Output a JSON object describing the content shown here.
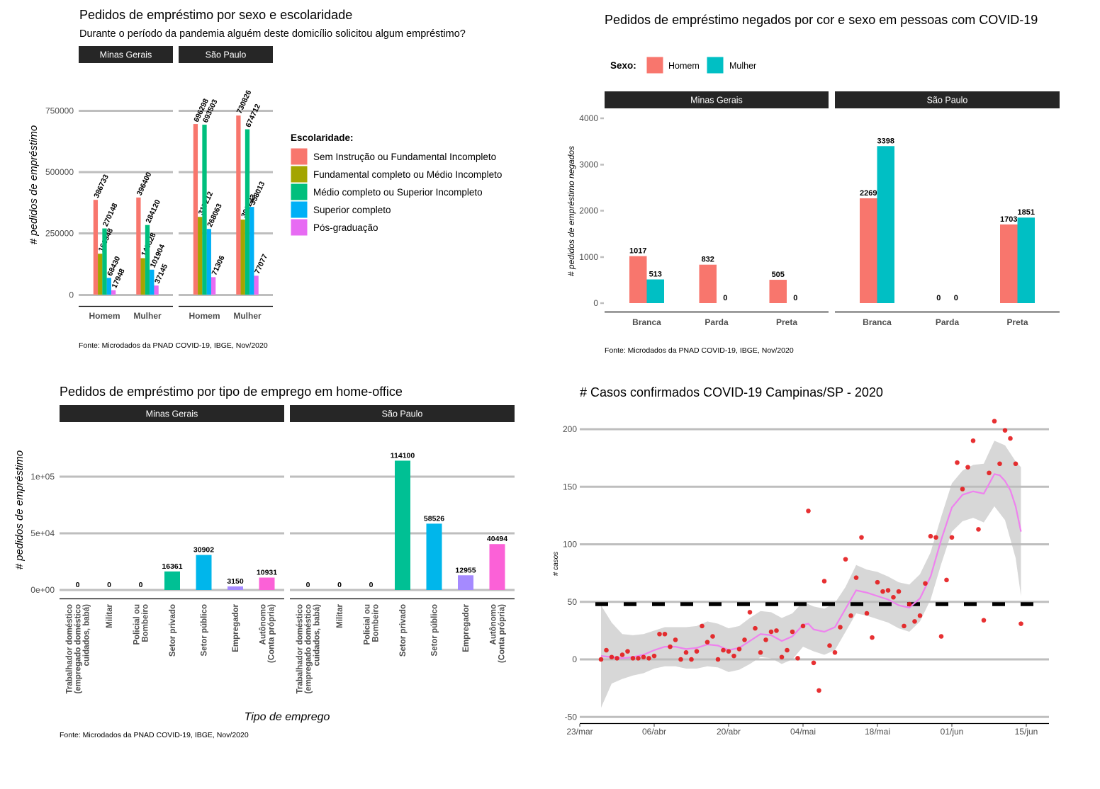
{
  "chart_data": [
    {
      "type": "bar",
      "title": "Pedidos de empréstimo por sexo e escolaridade",
      "subtitle": "Durante o período da pandemia alguém deste domicílio solicitou algum empréstimo?",
      "facets": [
        "Minas Gerais",
        "São Paulo"
      ],
      "categories": [
        "Homem",
        "Mulher"
      ],
      "ylabel": "# pedidos de empréstimo",
      "xlabel": "",
      "ylim": [
        0,
        800000
      ],
      "yticks": [
        0,
        250000,
        500000,
        750000
      ],
      "ytick_labels": [
        "0",
        "250000",
        "500000",
        "750000"
      ],
      "legend_title": "Escolaridade:",
      "legend_position": "right",
      "series": [
        {
          "name": "Sem Instrução ou Fundamental Incompleto",
          "color": "#F8766D",
          "values": {
            "Minas Gerais": [
              386733,
              396400
            ],
            "São Paulo": [
              696298,
              730826
            ]
          }
        },
        {
          "name": "Fundamental completo ou Médio Incompleto",
          "color": "#A3A500",
          "values": {
            "Minas Gerais": [
              166948,
              148828
            ],
            "São Paulo": [
              317212,
              306233
            ]
          }
        },
        {
          "name": "Médio completo ou Superior Incompleto",
          "color": "#00BF7D",
          "values": {
            "Minas Gerais": [
              270148,
              284120
            ],
            "São Paulo": [
              693503,
              674712
            ]
          }
        },
        {
          "name": "Superior completo",
          "color": "#00B0F6",
          "values": {
            "Minas Gerais": [
              68430,
              101904
            ],
            "São Paulo": [
              268063,
              358013
            ]
          }
        },
        {
          "name": "Pós-graduação",
          "color": "#E76BF3",
          "values": {
            "Minas Gerais": [
              17948,
              37145
            ],
            "São Paulo": [
              71306,
              77077
            ]
          }
        }
      ],
      "caption": "Fonte: Microdados da PNAD COVID-19, IBGE, Nov/2020"
    },
    {
      "type": "bar",
      "title": "Pedidos de empréstimo negados por cor e sexo em pessoas com COVID-19",
      "facets": [
        "Minas Gerais",
        "São Paulo"
      ],
      "categories": [
        "Branca",
        "Parda",
        "Preta"
      ],
      "ylabel": "# pedidos de empréstimo negados",
      "xlabel": "",
      "ylim": [
        0,
        4000
      ],
      "yticks": [
        0,
        1000,
        2000,
        3000,
        4000
      ],
      "ytick_labels": [
        "0",
        "1000",
        "2000",
        "3000",
        "4000"
      ],
      "legend_title": "Sexo:",
      "legend_position": "top",
      "series": [
        {
          "name": "Homem",
          "color": "#F8766D",
          "values": {
            "Minas Gerais": [
              1017,
              832,
              505
            ],
            "São Paulo": [
              2269,
              0,
              1703
            ]
          }
        },
        {
          "name": "Mulher",
          "color": "#00BFC4",
          "values": {
            "Minas Gerais": [
              513,
              0,
              0
            ],
            "São Paulo": [
              3398,
              0,
              1851
            ]
          }
        }
      ],
      "caption": "Fonte: Microdados da PNAD COVID-19, IBGE, Nov/2020"
    },
    {
      "type": "bar",
      "title": "Pedidos de empréstimo por tipo de emprego em home-office",
      "facets": [
        "Minas Gerais",
        "São Paulo"
      ],
      "categories": [
        [
          "Trabalhador doméstico",
          "(empregado doméstico",
          "cuidados, babá)"
        ],
        [
          "Militar"
        ],
        [
          "Policial ou",
          "Bombeiro"
        ],
        [
          "Setor privado"
        ],
        [
          "Setor público"
        ],
        [
          "Empregador"
        ],
        [
          "Autônomo",
          "(Conta própria)"
        ]
      ],
      "colors": [
        "#F8766D",
        "#C49A00",
        "#53B400",
        "#00C094",
        "#00B6EB",
        "#A58AFF",
        "#FB61D7"
      ],
      "values": {
        "Minas Gerais": [
          0,
          0,
          0,
          16361,
          30902,
          3150,
          10931
        ],
        "São Paulo": [
          0,
          0,
          0,
          114100,
          58526,
          12955,
          40494
        ]
      },
      "ylabel": "# pedidos de empréstimo",
      "xlabel": "Tipo de emprego",
      "ylim": [
        0,
        127000
      ],
      "yticks": [
        0,
        50000,
        100000
      ],
      "ytick_labels": [
        "0e+00",
        "5e+04",
        "1e+05"
      ],
      "caption": "Fonte: Microdados da PNAD COVID-19, IBGE, Nov/2020"
    },
    {
      "type": "scatter",
      "title": "# Casos confirmados COVID-19 Campinas/SP - 2020",
      "ylabel": "# casos",
      "xlabel": "",
      "x_start_date": "2020-03-23",
      "xticks": [
        0,
        14,
        28,
        42,
        56,
        70,
        84
      ],
      "xtick_labels": [
        "23/mar",
        "06/abr",
        "20/abr",
        "04/mai",
        "18/mai",
        "01/jun",
        "15/jun"
      ],
      "ylim": [
        -55,
        212
      ],
      "yticks": [
        -50,
        0,
        50,
        100,
        150,
        200
      ],
      "ytick_labels": [
        "-50",
        "0",
        "50",
        "100",
        "150",
        "200"
      ],
      "threshold_line": 48,
      "points": [
        [
          4,
          0
        ],
        [
          5,
          8
        ],
        [
          6,
          2
        ],
        [
          7,
          1
        ],
        [
          8,
          4
        ],
        [
          9,
          7
        ],
        [
          10,
          1
        ],
        [
          11,
          1
        ],
        [
          12,
          2
        ],
        [
          13,
          1
        ],
        [
          14,
          3
        ],
        [
          15,
          22
        ],
        [
          16,
          22
        ],
        [
          17,
          11
        ],
        [
          18,
          17
        ],
        [
          19,
          0
        ],
        [
          20,
          6
        ],
        [
          21,
          0
        ],
        [
          22,
          7
        ],
        [
          23,
          29
        ],
        [
          24,
          15
        ],
        [
          25,
          20
        ],
        [
          26,
          0
        ],
        [
          27,
          8
        ],
        [
          28,
          7
        ],
        [
          29,
          3
        ],
        [
          30,
          9
        ],
        [
          31,
          17
        ],
        [
          32,
          41
        ],
        [
          33,
          27
        ],
        [
          34,
          6
        ],
        [
          35,
          17
        ],
        [
          36,
          24
        ],
        [
          37,
          25
        ],
        [
          38,
          2
        ],
        [
          39,
          8
        ],
        [
          40,
          24
        ],
        [
          41,
          1
        ],
        [
          42,
          29
        ],
        [
          43,
          129
        ],
        [
          44,
          -3
        ],
        [
          45,
          -27
        ],
        [
          46,
          68
        ],
        [
          47,
          12
        ],
        [
          48,
          6
        ],
        [
          49,
          28
        ],
        [
          50,
          87
        ],
        [
          51,
          38
        ],
        [
          52,
          71
        ],
        [
          53,
          106
        ],
        [
          54,
          40
        ],
        [
          55,
          19
        ],
        [
          56,
          67
        ],
        [
          57,
          59
        ],
        [
          58,
          60
        ],
        [
          59,
          54
        ],
        [
          60,
          59
        ],
        [
          61,
          29
        ],
        [
          62,
          48
        ],
        [
          63,
          33
        ],
        [
          64,
          38
        ],
        [
          65,
          66
        ],
        [
          66,
          107
        ],
        [
          67,
          106
        ],
        [
          68,
          20
        ],
        [
          69,
          69
        ],
        [
          70,
          106
        ],
        [
          71,
          171
        ],
        [
          72,
          148
        ],
        [
          73,
          167
        ],
        [
          74,
          190
        ],
        [
          75,
          113
        ],
        [
          76,
          34
        ],
        [
          77,
          162
        ],
        [
          78,
          207
        ],
        [
          79,
          170
        ],
        [
          80,
          199
        ],
        [
          81,
          192
        ],
        [
          82,
          170
        ],
        [
          83,
          31
        ]
      ],
      "trend": [
        [
          4,
          3
        ],
        [
          8,
          1
        ],
        [
          10,
          2
        ],
        [
          12,
          4
        ],
        [
          14,
          8
        ],
        [
          16,
          11
        ],
        [
          18,
          11
        ],
        [
          20,
          9
        ],
        [
          22,
          10
        ],
        [
          24,
          13
        ],
        [
          26,
          12
        ],
        [
          28,
          8
        ],
        [
          30,
          10
        ],
        [
          32,
          16
        ],
        [
          34,
          22
        ],
        [
          36,
          21
        ],
        [
          38,
          16
        ],
        [
          40,
          20
        ],
        [
          42,
          30
        ],
        [
          43,
          31
        ],
        [
          44,
          26
        ],
        [
          46,
          24
        ],
        [
          48,
          28
        ],
        [
          50,
          44
        ],
        [
          52,
          60
        ],
        [
          54,
          58
        ],
        [
          56,
          55
        ],
        [
          58,
          52
        ],
        [
          60,
          47
        ],
        [
          62,
          45
        ],
        [
          64,
          53
        ],
        [
          66,
          72
        ],
        [
          68,
          104
        ],
        [
          70,
          132
        ],
        [
          72,
          143
        ],
        [
          74,
          146
        ],
        [
          76,
          144
        ],
        [
          78,
          161
        ],
        [
          79,
          160
        ],
        [
          80,
          155
        ],
        [
          81,
          147
        ],
        [
          82,
          133
        ],
        [
          83,
          111
        ]
      ],
      "band": [
        [
          4,
          -42,
          47
        ],
        [
          6,
          -21,
          32
        ],
        [
          8,
          -17,
          22
        ],
        [
          10,
          -14,
          21
        ],
        [
          12,
          -12,
          22
        ],
        [
          14,
          -8,
          25
        ],
        [
          16,
          -6,
          28
        ],
        [
          18,
          -6,
          28
        ],
        [
          20,
          -8,
          28
        ],
        [
          22,
          -8,
          29
        ],
        [
          24,
          -6,
          33
        ],
        [
          26,
          -7,
          31
        ],
        [
          28,
          -11,
          27
        ],
        [
          30,
          -9,
          29
        ],
        [
          32,
          -4,
          36
        ],
        [
          34,
          2,
          42
        ],
        [
          36,
          1,
          41
        ],
        [
          38,
          -4,
          36
        ],
        [
          40,
          0,
          40
        ],
        [
          42,
          11,
          50
        ],
        [
          44,
          7,
          46
        ],
        [
          46,
          4,
          44
        ],
        [
          48,
          8,
          49
        ],
        [
          50,
          24,
          63
        ],
        [
          52,
          40,
          82
        ],
        [
          54,
          38,
          78
        ],
        [
          56,
          35,
          76
        ],
        [
          58,
          32,
          72
        ],
        [
          60,
          27,
          67
        ],
        [
          62,
          24,
          65
        ],
        [
          64,
          33,
          74
        ],
        [
          66,
          52,
          93
        ],
        [
          68,
          83,
          124
        ],
        [
          70,
          111,
          153
        ],
        [
          72,
          120,
          164
        ],
        [
          74,
          123,
          169
        ],
        [
          76,
          119,
          170
        ],
        [
          78,
          133,
          190
        ],
        [
          80,
          121,
          186
        ],
        [
          82,
          88,
          172
        ],
        [
          83,
          55,
          167
        ]
      ]
    }
  ]
}
